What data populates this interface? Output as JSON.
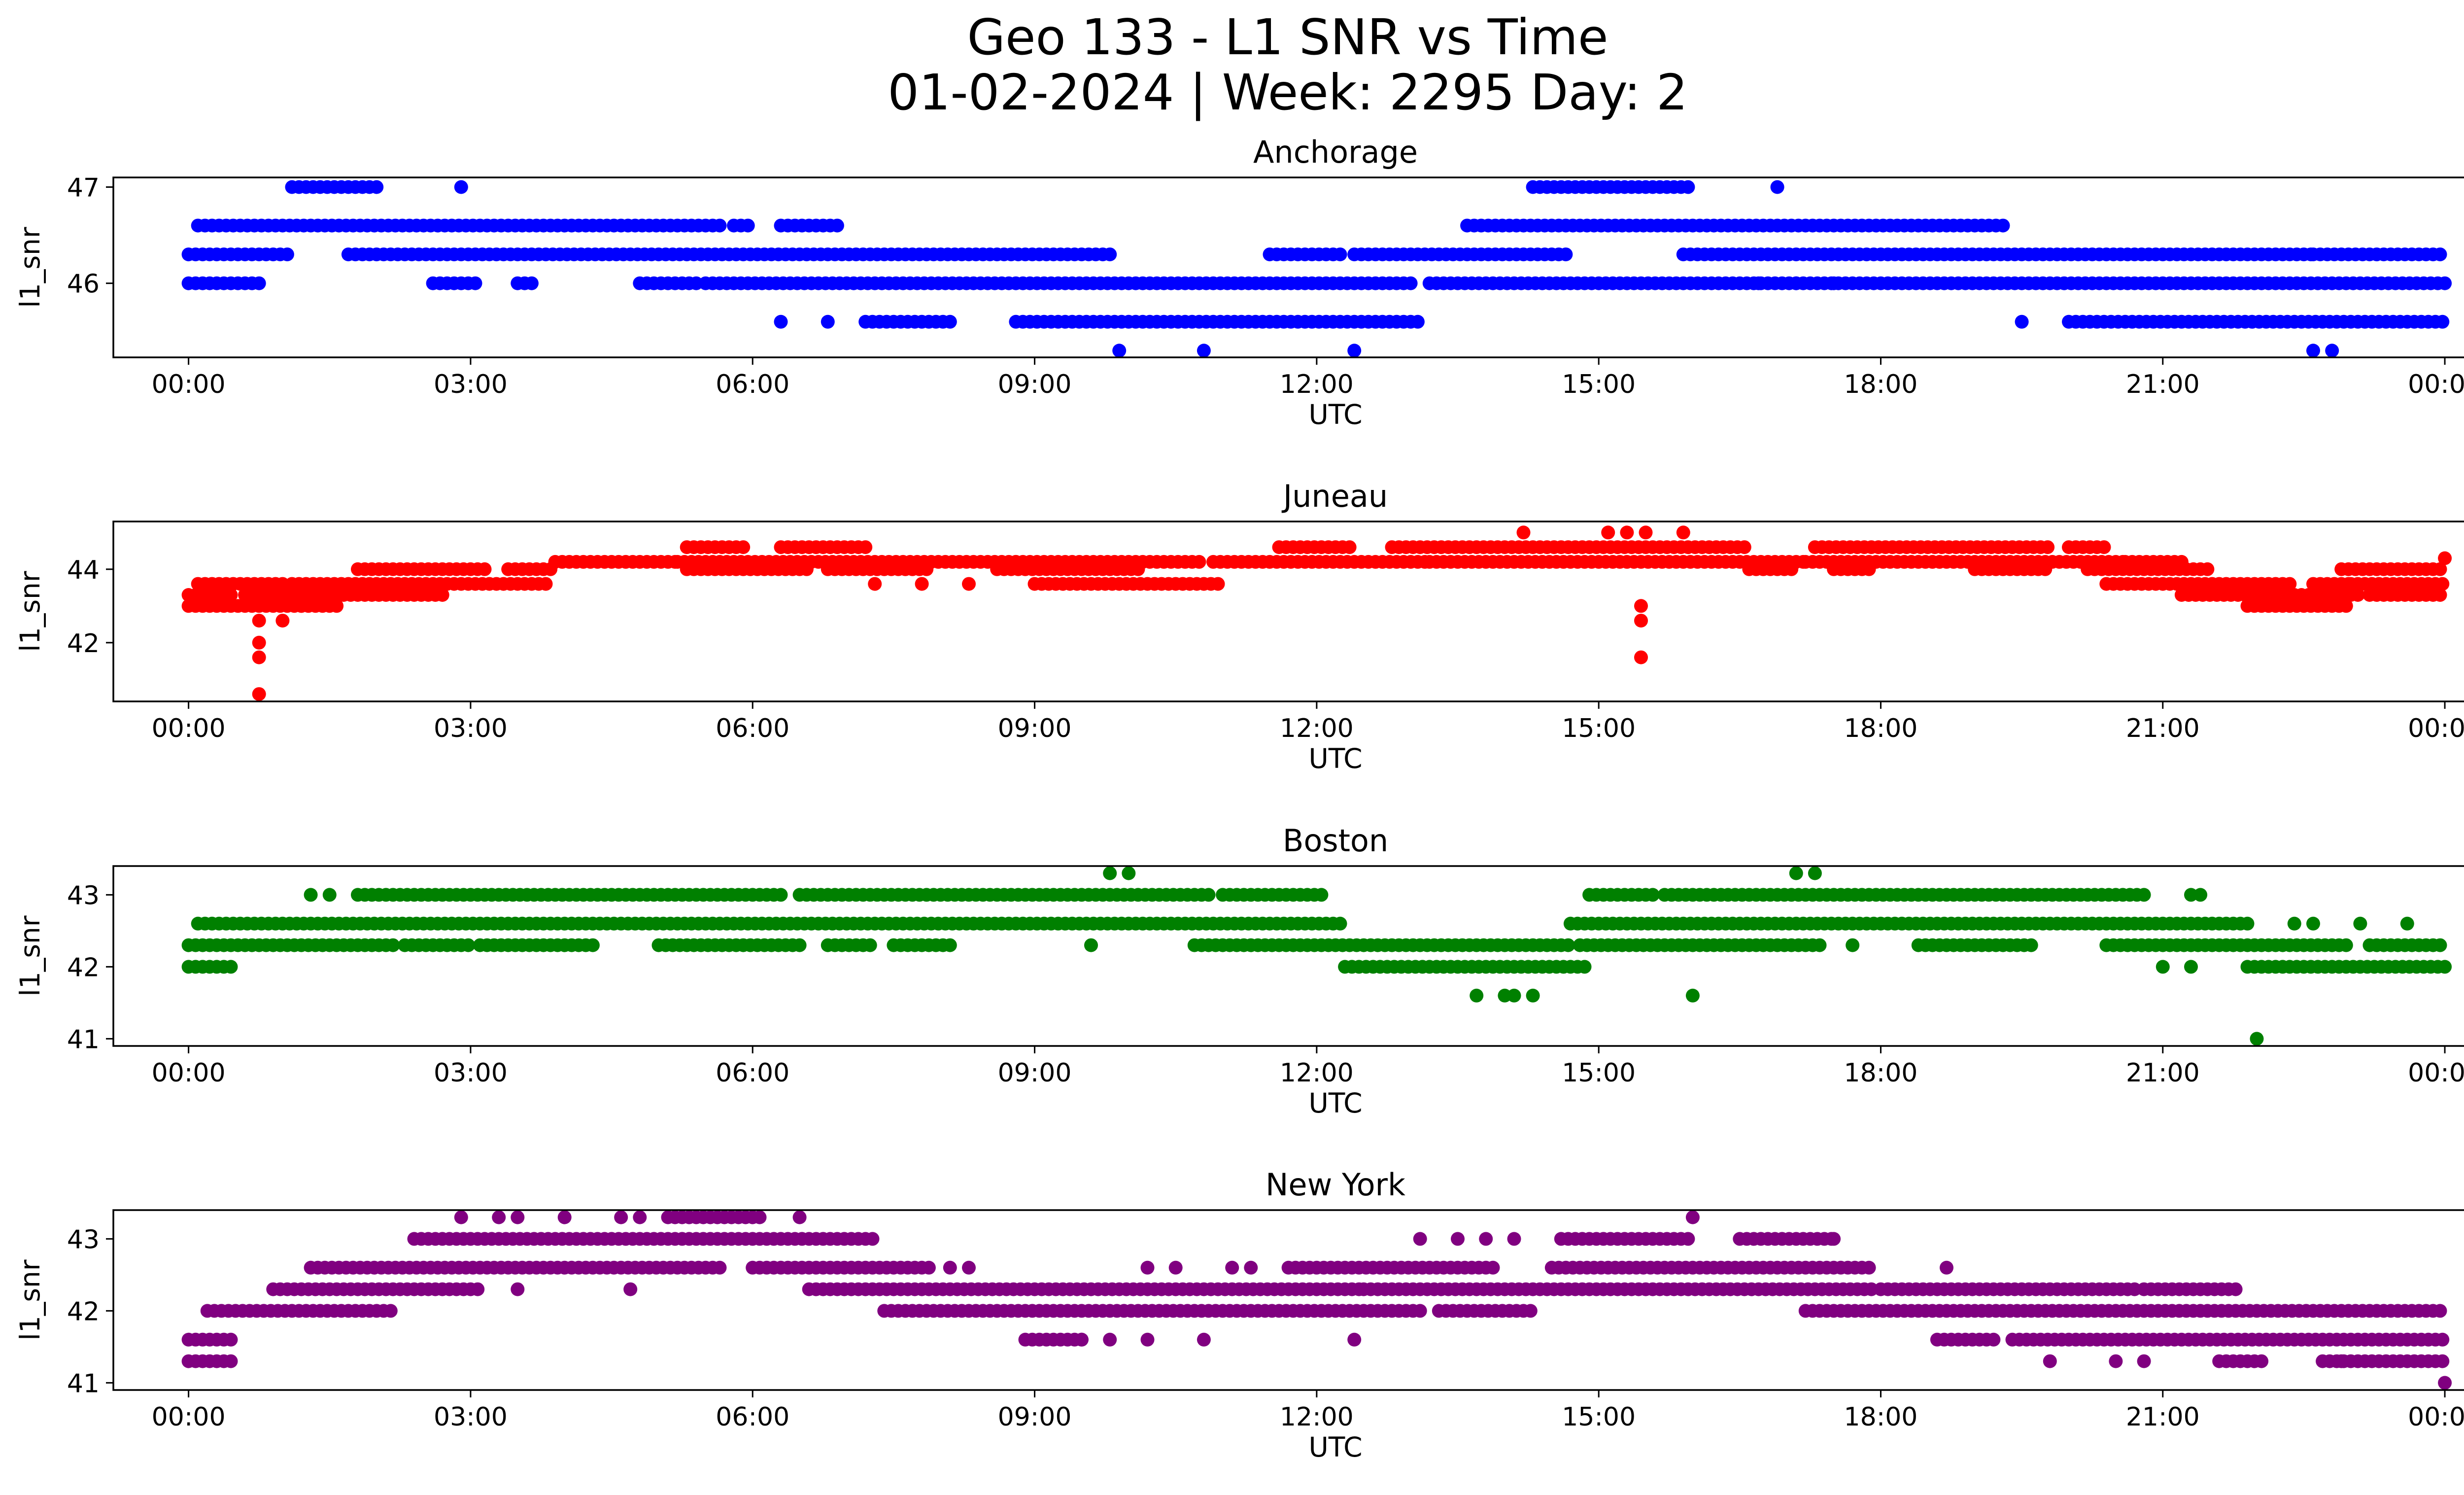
{
  "chart_data": {
    "type": "scatter",
    "title_line1": "Geo 133 - L1 SNR vs Time",
    "title_line2": "01-02-2024 | Week: 2295 Day: 2",
    "x_ticks": [
      "00:00",
      "03:00",
      "06:00",
      "09:00",
      "12:00",
      "15:00",
      "18:00",
      "21:00",
      "00:00"
    ],
    "panels": [
      {
        "title": "Anchorage",
        "xlabel": "UTC",
        "ylabel": "l1_snr",
        "color": "#0000ff",
        "ylim": [
          45.23,
          47.1
        ],
        "yticks": [
          46,
          47
        ],
        "bands": [
          {
            "y": 46.3,
            "segments": [
              [
                0.0,
                1.1
              ],
              [
                1.7,
                9.8
              ],
              [
                11.5,
                12.3
              ],
              [
                12.4,
                14.7
              ],
              [
                15.9,
                22.6
              ],
              [
                22.6,
                24.0
              ]
            ]
          },
          {
            "y": 46.6,
            "segments": [
              [
                0.1,
                5.7
              ],
              [
                5.8,
                6.0
              ],
              [
                6.3,
                6.9
              ],
              [
                13.6,
                19.3
              ]
            ]
          },
          {
            "y": 46.0,
            "segments": [
              [
                0.0,
                0.8
              ],
              [
                2.6,
                3.1
              ],
              [
                3.5,
                3.7
              ],
              [
                4.8,
                5.4
              ],
              [
                5.5,
                13.0
              ],
              [
                13.2,
                24.0
              ]
            ]
          },
          {
            "y": 47.0,
            "segments": [
              [
                1.1,
                2.0
              ],
              [
                14.3,
                16.0
              ]
            ]
          },
          {
            "y": 45.6,
            "segments": [
              [
                7.2,
                8.1
              ],
              [
                8.8,
                13.1
              ],
              [
                20.0,
                24.0
              ]
            ]
          }
        ],
        "points": [
          [
            2.9,
            47.0
          ],
          [
            16.9,
            47.0
          ],
          [
            16.7,
            46.0
          ],
          [
            17.1,
            46.0
          ],
          [
            17.5,
            46.0
          ],
          [
            6.3,
            45.6
          ],
          [
            6.8,
            45.6
          ],
          [
            19.5,
            45.6
          ],
          [
            9.9,
            45.3
          ],
          [
            10.8,
            45.3
          ],
          [
            12.4,
            45.3
          ],
          [
            22.6,
            45.3
          ],
          [
            22.8,
            45.3
          ]
        ]
      },
      {
        "title": "Juneau",
        "xlabel": "UTC",
        "ylabel": "l1_snr",
        "color": "#ff0000",
        "ylim": [
          40.4,
          45.3
        ],
        "yticks": [
          42,
          44
        ],
        "bands": [
          {
            "y": 43.0,
            "segments": [
              [
                0.0,
                1.6
              ],
              [
                21.9,
                23.0
              ]
            ]
          },
          {
            "y": 43.3,
            "segments": [
              [
                0.0,
                0.5
              ],
              [
                0.6,
                2.7
              ],
              [
                21.2,
                23.1
              ],
              [
                23.2,
                24.0
              ]
            ]
          },
          {
            "y": 43.6,
            "segments": [
              [
                0.1,
                1.0
              ],
              [
                1.1,
                3.8
              ],
              [
                9.0,
                11.0
              ],
              [
                20.4,
                22.4
              ],
              [
                22.6,
                23.0
              ],
              [
                23.0,
                24.0
              ]
            ]
          },
          {
            "y": 44.0,
            "segments": [
              [
                1.8,
                3.2
              ],
              [
                3.4,
                3.9
              ],
              [
                5.3,
                6.6
              ],
              [
                6.8,
                7.9
              ],
              [
                8.6,
                10.1
              ],
              [
                16.6,
                17.1
              ],
              [
                17.5,
                17.9
              ],
              [
                19.0,
                19.8
              ],
              [
                20.2,
                21.5
              ],
              [
                22.9,
                24.0
              ]
            ]
          },
          {
            "y": 44.2,
            "segments": [
              [
                3.9,
                5.2
              ],
              [
                5.2,
                8.8
              ],
              [
                8.8,
                10.8
              ],
              [
                10.9,
                13.2
              ],
              [
                13.2,
                17.2
              ],
              [
                17.2,
                20.6
              ],
              [
                20.6,
                21.2
              ]
            ]
          },
          {
            "y": 44.6,
            "segments": [
              [
                5.3,
                5.9
              ],
              [
                6.3,
                7.2
              ],
              [
                11.6,
                12.4
              ],
              [
                12.8,
                16.6
              ],
              [
                17.3,
                19.8
              ],
              [
                20.0,
                20.4
              ]
            ]
          }
        ],
        "points": [
          [
            0.75,
            42.6
          ],
          [
            0.75,
            42.0
          ],
          [
            0.75,
            41.6
          ],
          [
            0.75,
            40.6
          ],
          [
            1.0,
            42.6
          ],
          [
            1.2,
            43.0
          ],
          [
            14.2,
            45.0
          ],
          [
            15.1,
            45.0
          ],
          [
            15.3,
            45.0
          ],
          [
            15.5,
            45.0
          ],
          [
            15.9,
            45.0
          ],
          [
            15.45,
            43.0
          ],
          [
            15.45,
            42.6
          ],
          [
            15.45,
            41.6
          ],
          [
            7.3,
            43.6
          ],
          [
            7.8,
            43.6
          ],
          [
            8.3,
            43.6
          ],
          [
            24.0,
            44.3
          ]
        ]
      },
      {
        "title": "Boston",
        "xlabel": "UTC",
        "ylabel": "l1_snr",
        "color": "#008000",
        "ylim": [
          40.9,
          43.4
        ],
        "yticks": [
          41,
          42,
          43
        ],
        "bands": [
          {
            "y": 42.0,
            "segments": [
              [
                0.0,
                0.5
              ],
              [
                12.3,
                14.9
              ],
              [
                21.9,
                24.0
              ]
            ]
          },
          {
            "y": 42.3,
            "segments": [
              [
                0.0,
                2.2
              ],
              [
                2.3,
                3.0
              ],
              [
                3.1,
                4.3
              ],
              [
                5.0,
                6.5
              ],
              [
                6.8,
                7.3
              ],
              [
                7.5,
                8.1
              ],
              [
                10.7,
                14.7
              ],
              [
                14.8,
                17.4
              ],
              [
                18.4,
                19.6
              ],
              [
                20.4,
                23.0
              ],
              [
                23.2,
                24.0
              ]
            ]
          },
          {
            "y": 42.6,
            "segments": [
              [
                0.1,
                12.3
              ],
              [
                14.7,
                21.9
              ]
            ]
          },
          {
            "y": 43.0,
            "segments": [
              [
                1.8,
                6.3
              ],
              [
                6.5,
                10.9
              ],
              [
                11.0,
                12.1
              ],
              [
                14.9,
                15.6
              ],
              [
                15.7,
                20.8
              ]
            ]
          }
        ],
        "points": [
          [
            1.3,
            43.0
          ],
          [
            1.5,
            43.0
          ],
          [
            9.8,
            43.3
          ],
          [
            10.0,
            43.3
          ],
          [
            17.1,
            43.3
          ],
          [
            17.3,
            43.3
          ],
          [
            21.3,
            43.0
          ],
          [
            21.4,
            43.0
          ],
          [
            13.7,
            41.6
          ],
          [
            14.0,
            41.6
          ],
          [
            14.1,
            41.6
          ],
          [
            14.3,
            41.6
          ],
          [
            16.0,
            41.6
          ],
          [
            22.0,
            41.0
          ],
          [
            21.0,
            42.0
          ],
          [
            21.3,
            42.0
          ],
          [
            9.6,
            42.3
          ],
          [
            17.7,
            42.3
          ],
          [
            23.1,
            42.6
          ],
          [
            22.4,
            42.6
          ],
          [
            22.6,
            42.6
          ],
          [
            23.6,
            42.6
          ]
        ]
      },
      {
        "title": "New York",
        "xlabel": "UTC",
        "ylabel": "l1_snr",
        "color": "#800080",
        "ylim": [
          40.9,
          43.4
        ],
        "yticks": [
          41,
          42,
          43
        ],
        "bands": [
          {
            "y": 41.3,
            "segments": [
              [
                0.0,
                0.5
              ],
              [
                21.6,
                22.1
              ],
              [
                22.7,
                24.0
              ]
            ]
          },
          {
            "y": 41.6,
            "segments": [
              [
                0.0,
                0.5
              ],
              [
                8.9,
                9.5
              ],
              [
                18.6,
                19.2
              ],
              [
                19.4,
                24.0
              ]
            ]
          },
          {
            "y": 42.0,
            "segments": [
              [
                0.2,
                2.2
              ],
              [
                7.4,
                13.1
              ],
              [
                13.3,
                14.3
              ],
              [
                17.2,
                24.0
              ]
            ]
          },
          {
            "y": 42.3,
            "segments": [
              [
                0.9,
                3.1
              ],
              [
                6.6,
                12.5
              ],
              [
                12.5,
                17.9
              ],
              [
                18.0,
                20.7
              ],
              [
                20.8,
                21.8
              ]
            ]
          },
          {
            "y": 42.6,
            "segments": [
              [
                1.3,
                5.7
              ],
              [
                6.0,
                7.9
              ],
              [
                11.7,
                13.9
              ],
              [
                14.5,
                17.9
              ]
            ]
          },
          {
            "y": 43.0,
            "segments": [
              [
                2.4,
                7.3
              ],
              [
                14.6,
                16.0
              ],
              [
                16.5,
                17.5
              ]
            ]
          },
          {
            "y": 43.3,
            "segments": [
              [
                5.1,
                6.1
              ]
            ]
          }
        ],
        "points": [
          [
            2.9,
            43.3
          ],
          [
            3.3,
            43.3
          ],
          [
            3.5,
            43.3
          ],
          [
            4.0,
            43.3
          ],
          [
            4.6,
            43.3
          ],
          [
            4.8,
            43.3
          ],
          [
            6.5,
            43.3
          ],
          [
            16.0,
            43.3
          ],
          [
            13.1,
            43.0
          ],
          [
            13.5,
            43.0
          ],
          [
            13.8,
            43.0
          ],
          [
            14.1,
            43.0
          ],
          [
            17.5,
            43.0
          ],
          [
            8.1,
            42.6
          ],
          [
            8.3,
            42.6
          ],
          [
            10.2,
            42.6
          ],
          [
            10.5,
            42.6
          ],
          [
            11.1,
            42.6
          ],
          [
            11.3,
            42.6
          ],
          [
            18.7,
            42.6
          ],
          [
            3.5,
            42.3
          ],
          [
            4.7,
            42.3
          ],
          [
            9.5,
            41.6
          ],
          [
            9.8,
            41.6
          ],
          [
            10.2,
            41.6
          ],
          [
            10.8,
            41.6
          ],
          [
            12.4,
            41.6
          ],
          [
            19.8,
            41.3
          ],
          [
            20.5,
            41.3
          ],
          [
            20.8,
            41.3
          ],
          [
            22.9,
            41.3
          ],
          [
            24.0,
            41.0
          ]
        ]
      }
    ]
  }
}
